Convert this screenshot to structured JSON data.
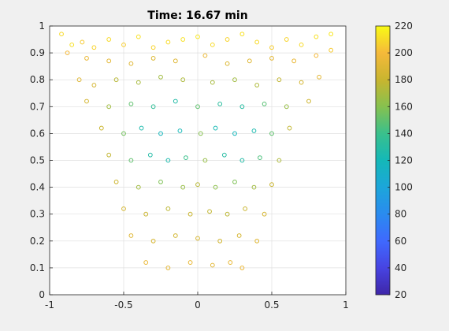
{
  "chart_data": {
    "type": "scatter",
    "title": "Time: 16.67 min",
    "xlabel": "",
    "ylabel": "",
    "xlim": [
      -1,
      1
    ],
    "ylim": [
      0,
      1
    ],
    "x_ticks": [
      -1,
      -0.5,
      0,
      0.5,
      1
    ],
    "y_ticks": [
      0,
      0.1,
      0.2,
      0.3,
      0.4,
      0.5,
      0.6,
      0.7,
      0.8,
      0.9,
      1
    ],
    "x_tick_labels": [
      "-1",
      "-0.5",
      "0",
      "0.5",
      "1"
    ],
    "y_tick_labels": [
      "0",
      "0.1",
      "0.2",
      "0.3",
      "0.4",
      "0.5",
      "0.6",
      "0.7",
      "0.8",
      "0.9",
      "1"
    ],
    "grid": true,
    "marker": "open-circle",
    "colormap": "parula",
    "colorbar": {
      "range": [
        20,
        220
      ],
      "ticks": [
        20,
        40,
        60,
        80,
        100,
        120,
        140,
        160,
        180,
        200,
        220
      ],
      "tick_labels": [
        "20",
        "40",
        "60",
        "80",
        "100",
        "120",
        "140",
        "160",
        "180",
        "200",
        "220"
      ],
      "colors": [
        "#3e26a8",
        "#4744e2",
        "#3f69fe",
        "#2a8bef",
        "#1ca6da",
        "#14b8b8",
        "#3ac08c",
        "#86c14f",
        "#c9b52f",
        "#f5b93a",
        "#f9fb15"
      ]
    },
    "series": [
      {
        "points": [
          [
            -0.92,
            0.97,
            210
          ],
          [
            -0.85,
            0.93,
            212
          ],
          [
            -0.78,
            0.94,
            205
          ],
          [
            -0.7,
            0.92,
            208
          ],
          [
            -0.6,
            0.95,
            210
          ],
          [
            -0.5,
            0.93,
            206
          ],
          [
            -0.4,
            0.96,
            212
          ],
          [
            -0.3,
            0.92,
            208
          ],
          [
            -0.2,
            0.94,
            210
          ],
          [
            -0.1,
            0.95,
            212
          ],
          [
            0.0,
            0.96,
            214
          ],
          [
            0.1,
            0.93,
            210
          ],
          [
            0.2,
            0.95,
            208
          ],
          [
            0.3,
            0.97,
            212
          ],
          [
            0.4,
            0.94,
            210
          ],
          [
            0.5,
            0.92,
            206
          ],
          [
            0.6,
            0.95,
            208
          ],
          [
            0.7,
            0.93,
            210
          ],
          [
            0.8,
            0.96,
            212
          ],
          [
            0.9,
            0.97,
            214
          ],
          [
            -0.88,
            0.9,
            200
          ],
          [
            -0.75,
            0.88,
            195
          ],
          [
            -0.6,
            0.87,
            192
          ],
          [
            -0.45,
            0.86,
            190
          ],
          [
            -0.3,
            0.88,
            188
          ],
          [
            -0.15,
            0.87,
            190
          ],
          [
            0.05,
            0.89,
            195
          ],
          [
            0.2,
            0.86,
            188
          ],
          [
            0.35,
            0.87,
            190
          ],
          [
            0.5,
            0.88,
            192
          ],
          [
            0.65,
            0.87,
            195
          ],
          [
            0.8,
            0.89,
            200
          ],
          [
            0.9,
            0.91,
            205
          ],
          [
            -0.8,
            0.8,
            190
          ],
          [
            -0.7,
            0.78,
            185
          ],
          [
            -0.55,
            0.8,
            175
          ],
          [
            -0.4,
            0.79,
            170
          ],
          [
            -0.25,
            0.81,
            168
          ],
          [
            -0.1,
            0.8,
            172
          ],
          [
            0.1,
            0.79,
            170
          ],
          [
            0.25,
            0.8,
            168
          ],
          [
            0.4,
            0.78,
            172
          ],
          [
            0.55,
            0.8,
            178
          ],
          [
            0.7,
            0.79,
            185
          ],
          [
            0.82,
            0.81,
            192
          ],
          [
            -0.75,
            0.72,
            185
          ],
          [
            -0.6,
            0.7,
            168
          ],
          [
            -0.45,
            0.71,
            150
          ],
          [
            -0.3,
            0.7,
            135
          ],
          [
            -0.15,
            0.72,
            128
          ],
          [
            0.0,
            0.7,
            150
          ],
          [
            0.15,
            0.71,
            132
          ],
          [
            0.3,
            0.7,
            130
          ],
          [
            0.45,
            0.71,
            148
          ],
          [
            0.6,
            0.7,
            165
          ],
          [
            0.75,
            0.72,
            182
          ],
          [
            -0.65,
            0.62,
            180
          ],
          [
            -0.5,
            0.6,
            155
          ],
          [
            -0.38,
            0.62,
            125
          ],
          [
            -0.25,
            0.6,
            118
          ],
          [
            -0.12,
            0.61,
            120
          ],
          [
            0.02,
            0.6,
            160
          ],
          [
            0.12,
            0.62,
            122
          ],
          [
            0.25,
            0.6,
            118
          ],
          [
            0.38,
            0.61,
            124
          ],
          [
            0.5,
            0.6,
            150
          ],
          [
            0.62,
            0.62,
            178
          ],
          [
            -0.6,
            0.52,
            178
          ],
          [
            -0.45,
            0.5,
            150
          ],
          [
            -0.32,
            0.52,
            128
          ],
          [
            -0.2,
            0.5,
            125
          ],
          [
            -0.08,
            0.51,
            140
          ],
          [
            0.05,
            0.5,
            165
          ],
          [
            0.18,
            0.52,
            130
          ],
          [
            0.3,
            0.5,
            128
          ],
          [
            0.42,
            0.51,
            145
          ],
          [
            0.55,
            0.5,
            172
          ],
          [
            -0.55,
            0.42,
            182
          ],
          [
            -0.4,
            0.4,
            168
          ],
          [
            -0.25,
            0.42,
            158
          ],
          [
            -0.1,
            0.4,
            165
          ],
          [
            0.0,
            0.41,
            175
          ],
          [
            0.12,
            0.4,
            162
          ],
          [
            0.25,
            0.42,
            158
          ],
          [
            0.38,
            0.4,
            168
          ],
          [
            0.5,
            0.41,
            180
          ],
          [
            -0.5,
            0.32,
            185
          ],
          [
            -0.35,
            0.3,
            180
          ],
          [
            -0.2,
            0.32,
            176
          ],
          [
            -0.05,
            0.3,
            180
          ],
          [
            0.08,
            0.31,
            178
          ],
          [
            0.2,
            0.3,
            176
          ],
          [
            0.32,
            0.32,
            180
          ],
          [
            0.45,
            0.3,
            186
          ],
          [
            -0.45,
            0.22,
            190
          ],
          [
            -0.3,
            0.2,
            186
          ],
          [
            -0.15,
            0.22,
            184
          ],
          [
            0.0,
            0.21,
            186
          ],
          [
            0.15,
            0.2,
            184
          ],
          [
            0.28,
            0.22,
            186
          ],
          [
            0.4,
            0.2,
            190
          ],
          [
            -0.35,
            0.12,
            195
          ],
          [
            -0.2,
            0.1,
            192
          ],
          [
            -0.05,
            0.12,
            194
          ],
          [
            0.1,
            0.11,
            192
          ],
          [
            0.22,
            0.12,
            194
          ],
          [
            0.3,
            0.1,
            196
          ]
        ]
      }
    ]
  }
}
